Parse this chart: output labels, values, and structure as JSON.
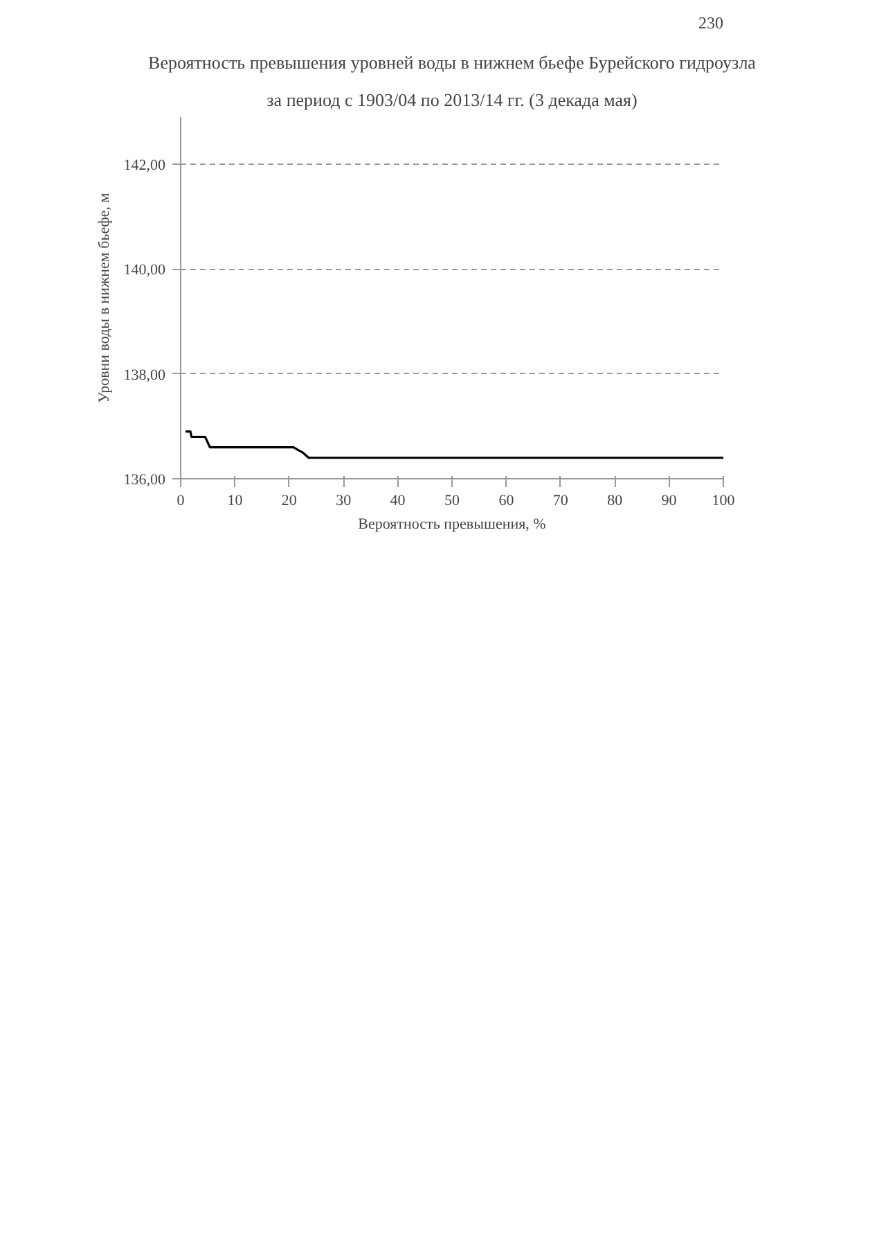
{
  "chart_data": {
    "type": "line",
    "title": "Вероятность превышения уровней воды в нижнем бьефе Бурейского гидроузла",
    "subtitle": "за период с 1903/04 по 2013/14 гг. (3 декада мая)",
    "xlabel": "Вероятность превышения, %",
    "ylabel": "Уровни воды в нижнем бьефе, м",
    "annotations": [
      "230"
    ],
    "series": [
      {
        "color": "#000000",
        "x": [
          0.9,
          1.8,
          2.0,
          4.5,
          5.4,
          6.0,
          20.8,
          21.6,
          22.5,
          23.6,
          100
        ],
        "values": [
          136.9,
          136.9,
          136.8,
          136.8,
          136.6,
          136.6,
          136.6,
          136.55,
          136.5,
          136.4,
          136.4
        ]
      }
    ],
    "xlim": [
      0,
      100
    ],
    "ylim": [
      136,
      142.9
    ],
    "xticks": [
      0,
      10,
      20,
      30,
      40,
      50,
      60,
      70,
      80,
      90,
      100
    ],
    "yticks": [
      {
        "value": 136,
        "label": "136,00"
      },
      {
        "value": 138,
        "label": "138,00"
      },
      {
        "value": 140,
        "label": "140,00"
      },
      {
        "value": 142,
        "label": "142,00"
      }
    ],
    "grid": "y",
    "marker": "none",
    "line_style": "solid"
  }
}
